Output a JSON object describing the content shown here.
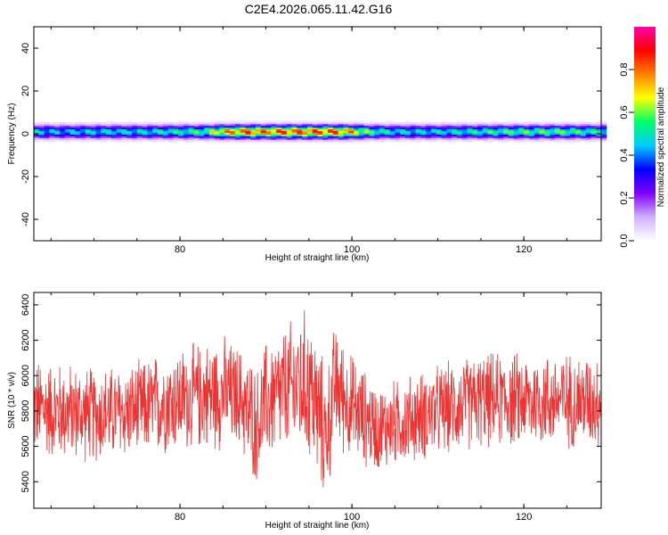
{
  "title": "C2E4.2026.065.11.42.G16",
  "colors": {
    "snr_line": "#ee3333",
    "background": "#ffffff",
    "spectrum_stops": [
      "#ffffff",
      "#d0b0ff",
      "#8000ff",
      "#0000ff",
      "#00ccff",
      "#00ff66",
      "#ffff00",
      "#ff8000",
      "#ff0000",
      "#ff00aa"
    ]
  },
  "chart_data": [
    {
      "type": "heatmap",
      "name": "spectrogram",
      "xlabel": "Height of straight line (km)",
      "ylabel": "Frequency (Hz)",
      "xlim": [
        63,
        129
      ],
      "ylim": [
        -50,
        50
      ],
      "xticks": [
        "80",
        "100",
        "120"
      ],
      "yticks": [
        "-40",
        "-20",
        "0",
        "20",
        "40"
      ],
      "colorbar": {
        "label": "Normalized spectral amplitude",
        "range": [
          0.0,
          1.0
        ],
        "ticks": [
          "0.0",
          "0.2",
          "0.4",
          "0.6",
          "0.8"
        ]
      },
      "band_center_hz": 1,
      "amplitude_profile": {
        "x": [
          63,
          66,
          70,
          75,
          80,
          83,
          85,
          88,
          90,
          92,
          95,
          98,
          100,
          102,
          105,
          110,
          115,
          120,
          125,
          129
        ],
        "peak": [
          0.55,
          0.5,
          0.55,
          0.55,
          0.6,
          0.65,
          0.85,
          0.95,
          0.9,
          0.95,
          0.95,
          0.95,
          0.85,
          0.65,
          0.55,
          0.55,
          0.6,
          0.65,
          0.65,
          0.6
        ]
      }
    },
    {
      "type": "line",
      "name": "snr",
      "xlabel": "Height of straight line (km)",
      "ylabel": "SNR (10 * v/v)",
      "xlim": [
        63,
        129
      ],
      "ylim": [
        5250,
        6470
      ],
      "xticks": [
        "80",
        "100",
        "120"
      ],
      "yticks": [
        "5400",
        "5600",
        "5800",
        "6000",
        "6200",
        "6400"
      ],
      "envelope": {
        "x": [
          63,
          66,
          70,
          75,
          78,
          82,
          85,
          87,
          88,
          89,
          90,
          92,
          94,
          95,
          96,
          97,
          98,
          100,
          103,
          106,
          110,
          115,
          120,
          125,
          129
        ],
        "mean": [
          5820,
          5800,
          5780,
          5800,
          5850,
          5880,
          5900,
          5880,
          5780,
          5720,
          5850,
          5900,
          5950,
          5950,
          5800,
          5650,
          5950,
          5820,
          5700,
          5740,
          5800,
          5860,
          5860,
          5860,
          5860
        ],
        "spread": [
          260,
          260,
          250,
          250,
          270,
          280,
          300,
          260,
          320,
          300,
          320,
          340,
          380,
          400,
          380,
          350,
          320,
          280,
          230,
          230,
          240,
          250,
          250,
          250,
          250
        ]
      }
    }
  ]
}
